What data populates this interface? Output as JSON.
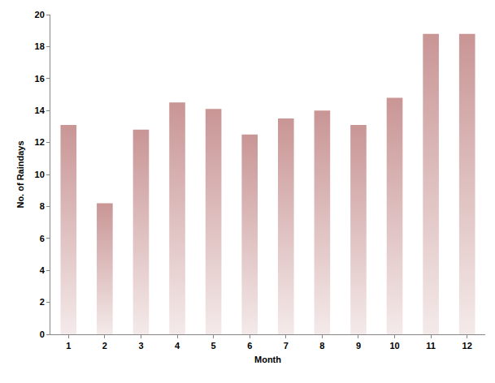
{
  "chart_data": {
    "type": "bar",
    "x_label": "Month",
    "y_label": "No. of Raindays",
    "categories": [
      "1",
      "2",
      "3",
      "4",
      "5",
      "6",
      "7",
      "8",
      "9",
      "10",
      "11",
      "12"
    ],
    "values": [
      13.1,
      8.2,
      12.8,
      14.5,
      14.1,
      12.5,
      13.5,
      14.0,
      13.1,
      14.8,
      18.8,
      18.8
    ],
    "color": "#c99595",
    "ylim": [
      0,
      20
    ],
    "yticks": [
      0,
      2,
      4,
      6,
      8,
      10,
      12,
      14,
      16,
      18,
      20
    ],
    "grid": false
  }
}
